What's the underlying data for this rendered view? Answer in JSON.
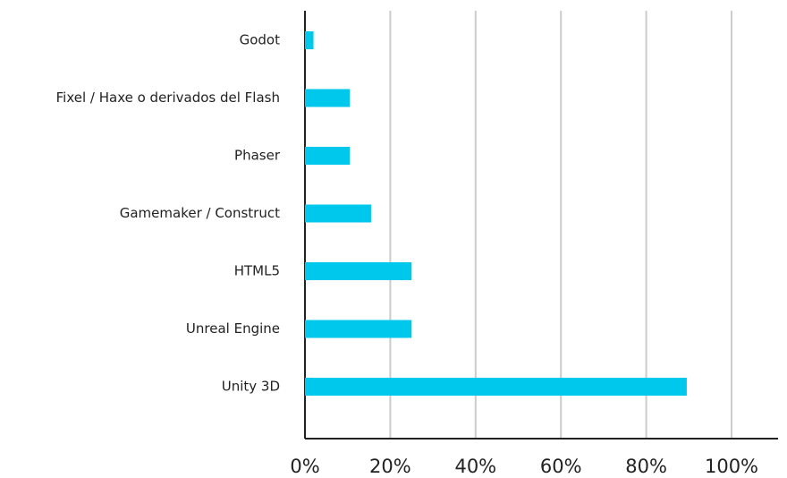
{
  "chart_data": {
    "type": "bar",
    "orientation": "horizontal",
    "categories": [
      "Godot",
      "Fixel / Haxe o derivados del Flash",
      "Phaser",
      "Gamemaker / Construct",
      "HTML5",
      "Unreal Engine",
      "Unity 3D"
    ],
    "values": [
      2,
      10.5,
      10.5,
      15.5,
      25,
      25,
      89.5
    ],
    "color": "#00c8ec",
    "xlim": [
      0,
      100
    ],
    "xticks": [
      {
        "value": 0,
        "label": "0%"
      },
      {
        "value": 20,
        "label": "20%"
      },
      {
        "value": 40,
        "label": "40%"
      },
      {
        "value": 60,
        "label": "60%"
      },
      {
        "value": 80,
        "label": "80%"
      },
      {
        "value": 100,
        "label": "100%"
      }
    ],
    "grid": true
  }
}
